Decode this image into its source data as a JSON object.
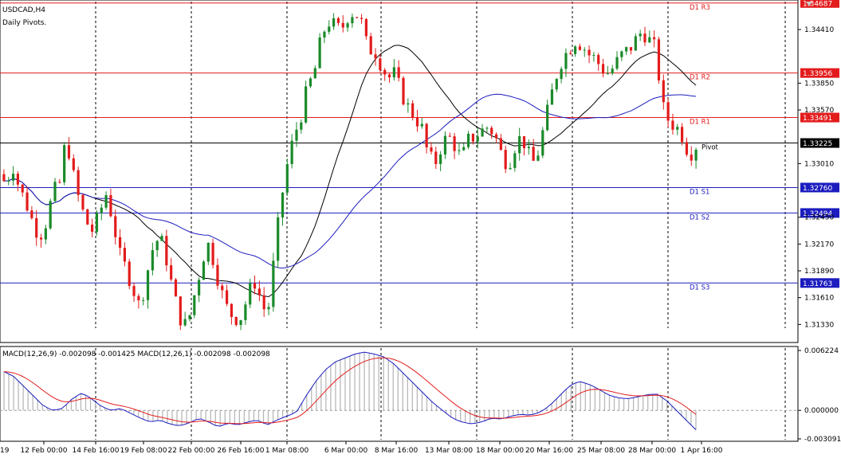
{
  "chart_data": {
    "type": "candlestick",
    "symbol_label": "USDCAD,H4",
    "indicator_label": "Daily Pivots.",
    "macd_label": "MACD(12,26,9) -0.002098 -0.001425 MACD(12,26,1) -0.002098 -0.002098",
    "price_axis_ticks": [
      "1.34410",
      "1.33850",
      "1.33570",
      "1.33010",
      "1.32450",
      "1.32170",
      "1.31890",
      "1.31610",
      "1.31330"
    ],
    "macd_axis_ticks": [
      "0.006224",
      "0.000000",
      "-0.003091"
    ],
    "x_ticks": [
      "12 Feb 00:00",
      "14 Feb 16:00",
      "19 Feb 08:00",
      "22 Feb 00:00",
      "26 Feb 16:00",
      "1 Mar 08:00",
      "6 Mar 00:00",
      "8 Mar 16:00",
      "13 Mar 08:00",
      "18 Mar 00:00",
      "20 Mar 16:00",
      "25 Mar 08:00",
      "28 Mar 00:00",
      "1 Apr 16:00"
    ],
    "left_cut_label": "19",
    "price_ylim": [
      1.3115,
      1.3471
    ],
    "macd_ylim": [
      -0.0031,
      0.0065
    ],
    "current_price": "1.33225",
    "pivots": [
      {
        "name": "D1 R3",
        "value": 1.34687,
        "label": "1.34687",
        "color": "#e31b1b"
      },
      {
        "name": "D1 R2",
        "value": 1.33956,
        "label": "1.33956",
        "color": "#e31b1b"
      },
      {
        "name": "D1 R1",
        "value": 1.33491,
        "label": "1.33491",
        "color": "#e31b1b"
      },
      {
        "name": "Pivot",
        "value": 1.33225,
        "label": "1.33225",
        "color": "#000000"
      },
      {
        "name": "D1 S1",
        "value": 1.3276,
        "label": "1.32760",
        "color": "#1c1cbf"
      },
      {
        "name": "D1 S2",
        "value": 1.32494,
        "label": "1.32494",
        "color": "#1c1cbf"
      },
      {
        "name": "D1 S3",
        "value": 1.31763,
        "label": "1.31763",
        "color": "#1c1cbf"
      }
    ],
    "price_path": [
      1.329,
      1.328,
      1.33,
      1.3275,
      1.326,
      1.324,
      1.3225,
      1.324,
      1.327,
      1.328,
      1.333,
      1.329,
      1.326,
      1.324,
      1.323,
      1.325,
      1.327,
      1.324,
      1.3205,
      1.319,
      1.317,
      1.315,
      1.3185,
      1.3215,
      1.3225,
      1.32,
      1.3165,
      1.314,
      1.313,
      1.316,
      1.319,
      1.322,
      1.32,
      1.317,
      1.315,
      1.314,
      1.314,
      1.316,
      1.318,
      1.316,
      1.314,
      1.32,
      1.326,
      1.33,
      1.333,
      1.335,
      1.338,
      1.3395,
      1.343,
      1.345,
      1.3445,
      1.344,
      1.3455,
      1.346,
      1.345,
      1.342,
      1.342,
      1.3405,
      1.339,
      1.3395,
      1.3375,
      1.336,
      1.335,
      1.334,
      1.331,
      1.33,
      1.332,
      1.333,
      1.332,
      1.3305,
      1.3325,
      1.333,
      1.3335,
      1.334,
      1.333,
      1.331,
      1.33,
      1.332,
      1.333,
      1.331,
      1.33,
      1.333,
      1.336,
      1.339,
      1.341,
      1.342,
      1.343,
      1.3425,
      1.3415,
      1.341,
      1.34,
      1.3395,
      1.3405,
      1.3415,
      1.342,
      1.343,
      1.344,
      1.343,
      1.342,
      1.336,
      1.3345,
      1.334,
      1.333,
      1.331,
      1.332
    ],
    "macd_path": [
      0.004,
      0.0035,
      0.0025,
      0.0015,
      0.0005,
      0.0,
      0.0002,
      0.0012,
      0.0018,
      0.0012,
      0.0004,
      0.0,
      0.0002,
      -0.0003,
      -0.0008,
      -0.0012,
      -0.001,
      -0.0014,
      -0.0016,
      -0.0013,
      -0.0008,
      -0.0012,
      -0.0017,
      -0.0013,
      -0.0015,
      -0.0012,
      -0.001,
      -0.0015,
      -0.001,
      -0.0006,
      -0.0002,
      0.0015,
      0.003,
      0.0042,
      0.005,
      0.0054,
      0.0058,
      0.006,
      0.0058,
      0.0055,
      0.0048,
      0.0038,
      0.0028,
      0.0018,
      0.0008,
      0.0,
      -0.0008,
      -0.0012,
      -0.0014,
      -0.0012,
      -0.0008,
      -0.0009,
      -0.0006,
      -0.0004,
      -0.0005,
      -0.0002,
      0.0005,
      0.0015,
      0.0025,
      0.003,
      0.0027,
      0.0022,
      0.0016,
      0.0013,
      0.0012,
      0.0014,
      0.0016,
      0.0017,
      0.001,
      0.0,
      -0.001,
      -0.002
    ]
  }
}
